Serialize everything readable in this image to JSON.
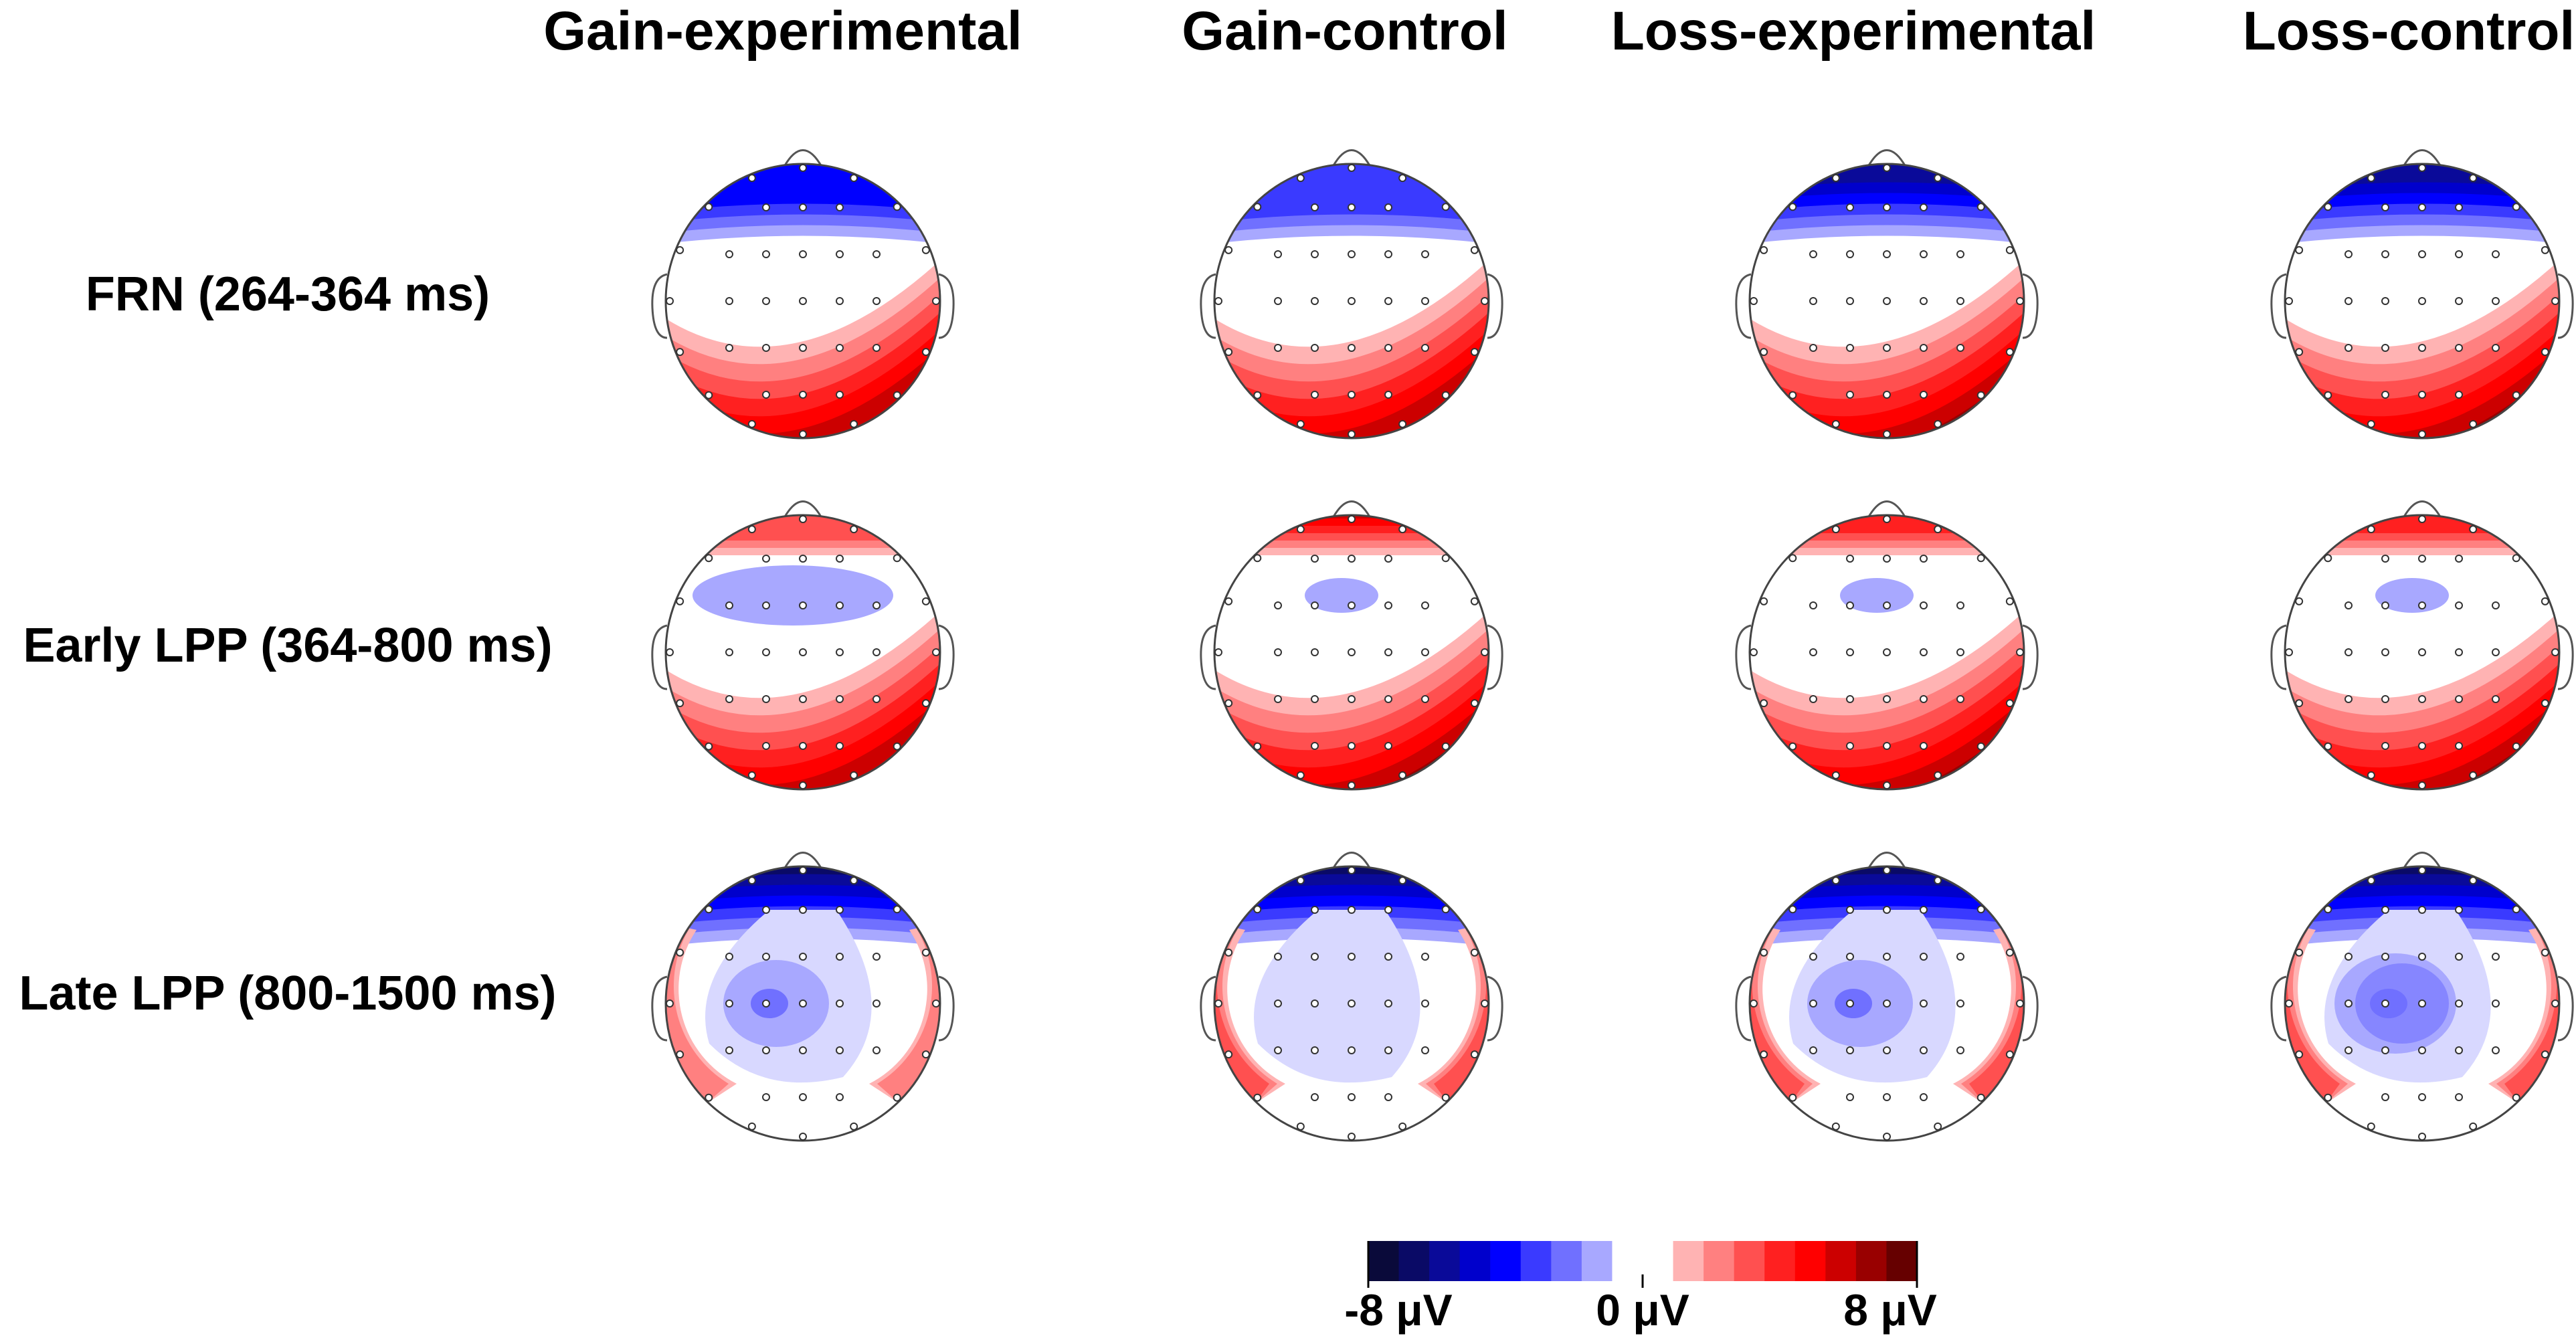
{
  "columns": [
    "Gain-experimental",
    "Gain-control",
    "Loss-experimental",
    "Loss-control"
  ],
  "rows": [
    "FRN (264-364 ms)",
    "Early LPP (364-800 ms)",
    "Late LPP (800-1500 ms)"
  ],
  "colorbar": {
    "min_label": "-8 μV",
    "mid_label": "0 μV",
    "max_label": "8 μV",
    "colors": [
      "#0a0a3a",
      "#0a0a66",
      "#0a0a99",
      "#0000cc",
      "#0000ff",
      "#3a3aff",
      "#7070ff",
      "#a8a8ff",
      "#ffffff",
      "#ffffff",
      "#ffb3b3",
      "#ff8080",
      "#ff5050",
      "#ff2020",
      "#ff0000",
      "#cc0000",
      "#990000",
      "#660000"
    ]
  },
  "maps": [
    [
      {
        "front_blue": 4,
        "back_red": 6,
        "mid_blue": 0,
        "side_red": 0
      },
      {
        "front_blue": 3,
        "back_red": 6,
        "mid_blue": 0,
        "side_red": 0
      },
      {
        "front_blue": 6,
        "back_red": 7,
        "mid_blue": 0,
        "side_red": 0
      },
      {
        "front_blue": 6,
        "back_red": 7,
        "mid_blue": 0,
        "side_red": 0
      }
    ],
    [
      {
        "front_red": 3,
        "back_red": 6,
        "mid_blue": 1,
        "side_red": 0
      },
      {
        "front_red": 6,
        "back_red": 7,
        "mid_blue": 1,
        "side_red": 0
      },
      {
        "front_red": 4,
        "back_red": 7,
        "mid_blue": 1,
        "side_red": 0
      },
      {
        "front_red": 4,
        "back_red": 7,
        "mid_blue": 1,
        "side_red": 0
      }
    ],
    [
      {
        "front_blue": 7,
        "back_red": 0,
        "mid_blue": 2,
        "side_red": 2
      },
      {
        "front_blue": 7,
        "back_red": 0,
        "mid_blue": 1,
        "side_red": 3
      },
      {
        "front_blue": 7,
        "back_red": 0,
        "mid_blue": 2,
        "side_red": 3
      },
      {
        "front_blue": 8,
        "back_red": 0,
        "mid_blue": 3,
        "side_red": 3
      }
    ]
  ]
}
